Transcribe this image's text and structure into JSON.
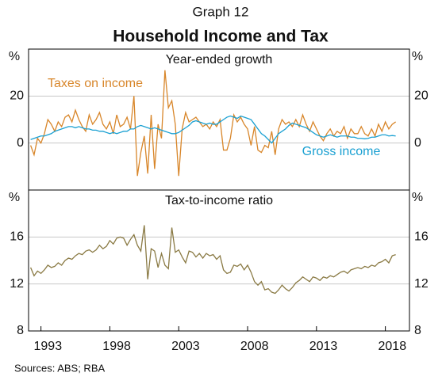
{
  "header": {
    "label": "Graph 12",
    "title": "Household Income and Tax"
  },
  "source": "Sources: ABS; RBA",
  "chart_data": [
    {
      "type": "line",
      "title": "Year-ended growth",
      "y_unit": "%",
      "xlim": [
        1992.1,
        2019.75
      ],
      "ylim": [
        -20,
        40
      ],
      "yticks": [
        0,
        20
      ],
      "grid": true,
      "x": [
        1992.25,
        1992.5,
        1992.75,
        1993,
        1993.25,
        1993.5,
        1993.75,
        1994,
        1994.25,
        1994.5,
        1994.75,
        1995,
        1995.25,
        1995.5,
        1995.75,
        1996,
        1996.25,
        1996.5,
        1996.75,
        1997,
        1997.25,
        1997.5,
        1997.75,
        1998,
        1998.25,
        1998.5,
        1998.75,
        1999,
        1999.25,
        1999.5,
        1999.75,
        2000,
        2000.25,
        2000.5,
        2000.75,
        2001,
        2001.25,
        2001.5,
        2001.75,
        2002,
        2002.25,
        2002.5,
        2002.75,
        2003,
        2003.25,
        2003.5,
        2003.75,
        2004,
        2004.25,
        2004.5,
        2004.75,
        2005,
        2005.25,
        2005.5,
        2005.75,
        2006,
        2006.25,
        2006.5,
        2006.75,
        2007,
        2007.25,
        2007.5,
        2007.75,
        2008,
        2008.25,
        2008.5,
        2008.75,
        2009,
        2009.25,
        2009.5,
        2009.75,
        2010,
        2010.25,
        2010.5,
        2010.75,
        2011,
        2011.25,
        2011.5,
        2011.75,
        2012,
        2012.25,
        2012.5,
        2012.75,
        2013,
        2013.25,
        2013.5,
        2013.75,
        2014,
        2014.25,
        2014.5,
        2014.75,
        2015,
        2015.25,
        2015.5,
        2015.75,
        2016,
        2016.25,
        2016.5,
        2016.75,
        2017,
        2017.25,
        2017.5,
        2017.75,
        2018,
        2018.25,
        2018.5,
        2018.75
      ],
      "series": [
        {
          "name": "Taxes on income",
          "color": "#d8862a",
          "values": [
            -1,
            -5,
            2,
            0,
            4,
            10,
            8,
            5,
            9,
            7,
            11,
            12,
            9,
            14,
            10,
            7,
            5,
            12,
            8,
            10,
            13,
            8,
            6,
            9,
            4,
            12,
            7,
            8,
            11,
            6,
            20,
            -14,
            -4,
            3,
            -13,
            12,
            -11,
            8,
            2,
            31,
            15,
            18,
            8,
            -14,
            6,
            13,
            9,
            10,
            11,
            9,
            7,
            8,
            6,
            9,
            7,
            10,
            -3,
            -3,
            2,
            12,
            9,
            11,
            8,
            6,
            -1,
            7,
            -3,
            -4,
            -1,
            -2,
            5,
            -5,
            6,
            10,
            8,
            9,
            7,
            10,
            7,
            12,
            8,
            5,
            9,
            6,
            3,
            1,
            4,
            6,
            3,
            5,
            4,
            7,
            2,
            6,
            4,
            4,
            7,
            4,
            3,
            6,
            3,
            8,
            5,
            9,
            6,
            8,
            9
          ]
        },
        {
          "name": "Gross income",
          "color": "#1aa0d2",
          "values": [
            1.5,
            2,
            2.5,
            3,
            3,
            3.5,
            4,
            5,
            5.5,
            6,
            6.5,
            7,
            7,
            6.5,
            7,
            6.5,
            6,
            6,
            5.5,
            5.5,
            5,
            5,
            4.5,
            4,
            4.5,
            4,
            4.5,
            5,
            5,
            6,
            6,
            7,
            7.5,
            7,
            6.5,
            6,
            6.5,
            6,
            5.5,
            5,
            4.5,
            4,
            4,
            4.5,
            5.5,
            6.5,
            7.5,
            9,
            9.5,
            9,
            8.5,
            8,
            8.5,
            8,
            8,
            9,
            10,
            11,
            11.5,
            11,
            10.5,
            11.5,
            11,
            10.5,
            10,
            8,
            6,
            4,
            3,
            1.5,
            0,
            2,
            4,
            5,
            6,
            7.5,
            8.5,
            8,
            7.5,
            7,
            6.5,
            5.5,
            4.5,
            3.5,
            3,
            2.5,
            3,
            3.5,
            3,
            2.5,
            3,
            3,
            3,
            2.5,
            2.5,
            2,
            2,
            1.8,
            2,
            2.5,
            2.5,
            3,
            3.5,
            3.5,
            3,
            3.2,
            3
          ]
        }
      ]
    },
    {
      "type": "line",
      "title": "Tax-to-income ratio",
      "y_unit": "%",
      "xlim": [
        1992.1,
        2019.75
      ],
      "ylim": [
        8,
        20
      ],
      "yticks": [
        8,
        12,
        16
      ],
      "grid": true,
      "xticks": [
        1993,
        1998,
        2003,
        2008,
        2013,
        2018
      ],
      "x": [
        1992.25,
        1992.5,
        1992.75,
        1993,
        1993.25,
        1993.5,
        1993.75,
        1994,
        1994.25,
        1994.5,
        1994.75,
        1995,
        1995.25,
        1995.5,
        1995.75,
        1996,
        1996.25,
        1996.5,
        1996.75,
        1997,
        1997.25,
        1997.5,
        1997.75,
        1998,
        1998.25,
        1998.5,
        1998.75,
        1999,
        1999.25,
        1999.5,
        1999.75,
        2000,
        2000.25,
        2000.5,
        2000.75,
        2001,
        2001.25,
        2001.5,
        2001.75,
        2002,
        2002.25,
        2002.5,
        2002.75,
        2003,
        2003.25,
        2003.5,
        2003.75,
        2004,
        2004.25,
        2004.5,
        2004.75,
        2005,
        2005.25,
        2005.5,
        2005.75,
        2006,
        2006.25,
        2006.5,
        2006.75,
        2007,
        2007.25,
        2007.5,
        2007.75,
        2008,
        2008.25,
        2008.5,
        2008.75,
        2009,
        2009.25,
        2009.5,
        2009.75,
        2010,
        2010.25,
        2010.5,
        2010.75,
        2011,
        2011.25,
        2011.5,
        2011.75,
        2012,
        2012.25,
        2012.5,
        2012.75,
        2013,
        2013.25,
        2013.5,
        2013.75,
        2014,
        2014.25,
        2014.5,
        2014.75,
        2015,
        2015.25,
        2015.5,
        2015.75,
        2016,
        2016.25,
        2016.5,
        2016.75,
        2017,
        2017.25,
        2017.5,
        2017.75,
        2018,
        2018.25,
        2018.5,
        2018.75
      ],
      "series": [
        {
          "color": "#8a7a44",
          "values": [
            13.4,
            12.7,
            13.1,
            12.9,
            13.2,
            13.6,
            13.4,
            13.5,
            13.8,
            13.6,
            14.0,
            14.2,
            14.1,
            14.4,
            14.6,
            14.5,
            14.8,
            14.9,
            14.7,
            14.9,
            15.3,
            15.0,
            15.2,
            15.7,
            15.4,
            15.9,
            16.0,
            15.9,
            15.3,
            15.8,
            16.2,
            15.3,
            14.8,
            17.0,
            12.4,
            15.0,
            14.8,
            13.4,
            14.6,
            13.6,
            13.3,
            16.8,
            14.7,
            14.9,
            14.3,
            13.8,
            14.8,
            14.7,
            14.3,
            14.6,
            14.2,
            14.6,
            14.4,
            14.5,
            14.1,
            14.4,
            13.2,
            12.9,
            13.0,
            13.6,
            13.5,
            13.7,
            13.2,
            13.6,
            13.0,
            12.2,
            11.9,
            12.2,
            11.5,
            11.6,
            11.3,
            11.2,
            11.5,
            11.9,
            11.6,
            11.4,
            11.7,
            12.1,
            12.3,
            12.6,
            12.4,
            12.2,
            12.6,
            12.5,
            12.3,
            12.6,
            12.5,
            12.7,
            12.6,
            12.8,
            13.0,
            13.1,
            12.9,
            13.2,
            13.3,
            13.4,
            13.3,
            13.5,
            13.4,
            13.6,
            13.5,
            13.8,
            13.9,
            14.1,
            13.8,
            14.4,
            14.5
          ]
        }
      ]
    }
  ]
}
